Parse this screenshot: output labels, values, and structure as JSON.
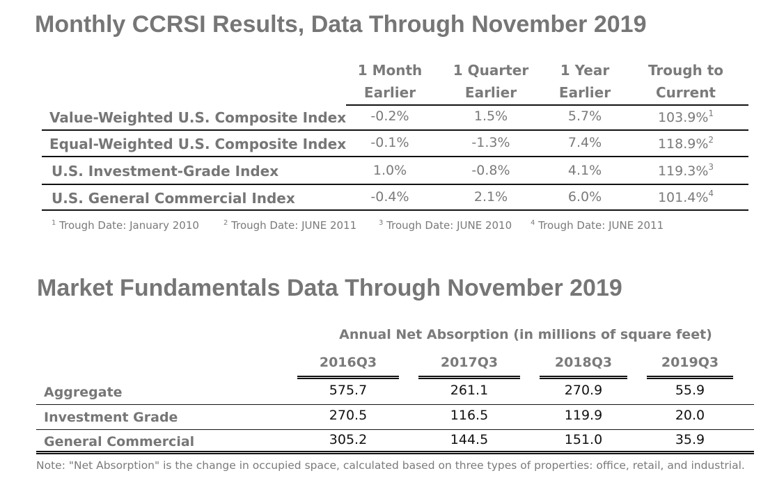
{
  "ccrsi": {
    "title": "Monthly CCRSI Results, Data Through November 2019",
    "columns": [
      {
        "line1": "1 Month",
        "line2": "Earlier"
      },
      {
        "line1": "1 Quarter",
        "line2": "Earlier"
      },
      {
        "line1": "1 Year",
        "line2": "Earlier"
      },
      {
        "line1": "Trough to",
        "line2": "Current"
      }
    ],
    "rows": [
      {
        "label": "Value-Weighted U.S. Composite Index",
        "m": "-0.2%",
        "q": "1.5%",
        "y": "5.7%",
        "t": "103.9%",
        "note": "1"
      },
      {
        "label": "Equal-Weighted U.S. Composite Index",
        "m": "-0.1%",
        "q": "-1.3%",
        "y": "7.4%",
        "t": "118.9%",
        "note": "2"
      },
      {
        "label": "U.S. Investment-Grade Index",
        "m": "1.0%",
        "q": "-0.8%",
        "y": "4.1%",
        "t": "119.3%",
        "note": "3"
      },
      {
        "label": "U.S. General Commercial Index",
        "m": "-0.4%",
        "q": "2.1%",
        "y": "6.0%",
        "t": "101.4%",
        "note": "4"
      }
    ],
    "footnotes": [
      {
        "num": "1",
        "text": " Trough Date: January 2010"
      },
      {
        "num": "2",
        "text": " Trough Date: JUNE 2011"
      },
      {
        "num": "3",
        "text": " Trough Date: JUNE 2010"
      },
      {
        "num": "4",
        "text": " Trough Date: JUNE 2011"
      }
    ]
  },
  "market": {
    "title": "Market Fundamentals Data Through November 2019",
    "subtitle": "Annual Net Absorption (in millions of square feet)",
    "columns": [
      "2016Q3",
      "2017Q3",
      "2018Q3",
      "2019Q3"
    ],
    "rows": [
      {
        "label": "Aggregate",
        "values": [
          "575.7",
          "261.1",
          "270.9",
          "55.9"
        ]
      },
      {
        "label": "Investment Grade",
        "values": [
          "270.5",
          "116.5",
          "119.9",
          "20.0"
        ]
      },
      {
        "label": "General Commercial",
        "values": [
          "305.2",
          "144.5",
          "151.0",
          "35.9"
        ]
      }
    ],
    "note": "Note: \"Net Absorption\" is the change in occupied space, calculated based on three types of properties: office, retail, and industrial."
  }
}
